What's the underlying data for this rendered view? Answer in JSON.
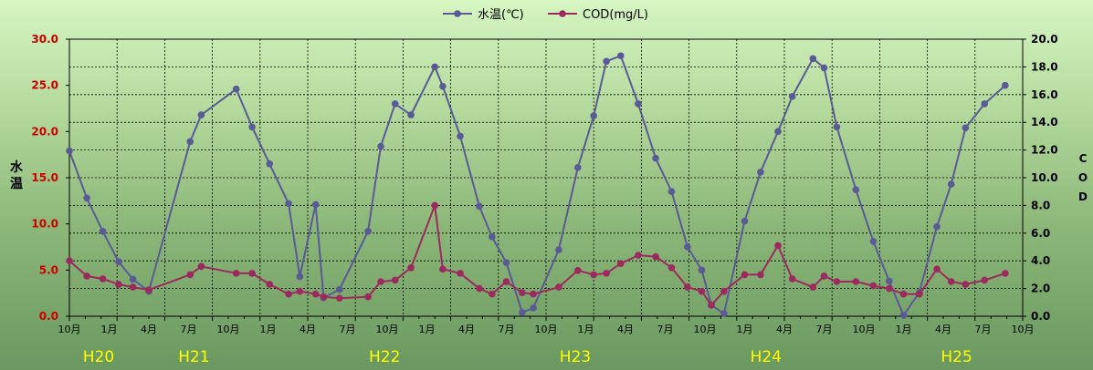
{
  "chart_data": {
    "type": "line",
    "title": "",
    "legend": {
      "placement": "top-center",
      "entries": [
        "水温(℃)",
        "COD(mg/L)"
      ]
    },
    "grid": true,
    "y_left": {
      "label": "水温",
      "lim": [
        0,
        30
      ],
      "ticks": [
        "0.0",
        "5.0",
        "10.0",
        "15.0",
        "20.0",
        "25.0",
        "30.0"
      ]
    },
    "y_right": {
      "label": "COD",
      "lim": [
        0,
        20
      ],
      "ticks": [
        "0.0",
        "2.0",
        "4.0",
        "6.0",
        "8.0",
        "10.0",
        "12.0",
        "14.0",
        "16.0",
        "18.0",
        "20.0"
      ]
    },
    "x_tick_labels": [
      "10月",
      "1月",
      "4月",
      "7月",
      "10月",
      "1月",
      "4月",
      "7月",
      "10月",
      "1月",
      "4月",
      "7月",
      "10月",
      "1月",
      "4月",
      "7月",
      "10月",
      "1月",
      "4月",
      "7月",
      "10月",
      "1月",
      "4月",
      "7月",
      "10月"
    ],
    "year_labels": [
      {
        "label": "H20",
        "month_index": 0
      },
      {
        "label": "H21",
        "month_index": 6
      },
      {
        "label": "H22",
        "month_index": 18
      },
      {
        "label": "H23",
        "month_index": 30
      },
      {
        "label": "H24",
        "month_index": 42
      },
      {
        "label": "H25",
        "month_index": 54
      }
    ],
    "colors": {
      "water_temp": "#5a5a96",
      "cod": "#9c2a5e",
      "left_axis_text": "#cc0000",
      "right_axis_text": "#000000",
      "year_text": "#ffff00"
    },
    "series": [
      {
        "name": "水温(℃)",
        "axis": "left",
        "points": [
          [
            0,
            17.9
          ],
          [
            1.1,
            12.8
          ],
          [
            2.1,
            9.2
          ],
          [
            3.1,
            5.9
          ],
          [
            4,
            4.0
          ],
          [
            5,
            2.7
          ],
          [
            7.6,
            18.9
          ],
          [
            8.3,
            21.8
          ],
          [
            10.5,
            24.6
          ],
          [
            11.5,
            20.5
          ],
          [
            12.6,
            16.5
          ],
          [
            13.8,
            12.2
          ],
          [
            14.5,
            4.3
          ],
          [
            15.5,
            12.1
          ],
          [
            16,
            2.0
          ],
          [
            17,
            2.9
          ],
          [
            18.8,
            9.2
          ],
          [
            19.6,
            18.4
          ],
          [
            20.5,
            23.0
          ],
          [
            21.5,
            21.8
          ],
          [
            23,
            27.0
          ],
          [
            23.5,
            24.9
          ],
          [
            24.6,
            19.5
          ],
          [
            25.8,
            11.9
          ],
          [
            26.6,
            8.6
          ],
          [
            27.5,
            5.8
          ],
          [
            28.5,
            0.4
          ],
          [
            29.2,
            0.9
          ],
          [
            30.8,
            7.2
          ],
          [
            32,
            16.1
          ],
          [
            33,
            21.7
          ],
          [
            33.8,
            27.6
          ],
          [
            34.7,
            28.2
          ],
          [
            35.8,
            23.0
          ],
          [
            36.9,
            17.1
          ],
          [
            37.9,
            13.5
          ],
          [
            38.9,
            7.5
          ],
          [
            39.8,
            5.0
          ],
          [
            40.4,
            1.2
          ],
          [
            41.2,
            0.3
          ],
          [
            42.5,
            10.3
          ],
          [
            43.5,
            15.6
          ],
          [
            44.6,
            20.0
          ],
          [
            45.5,
            23.8
          ],
          [
            46.8,
            27.9
          ],
          [
            47.5,
            26.9
          ],
          [
            48.3,
            20.5
          ],
          [
            49.5,
            13.7
          ],
          [
            50.6,
            8.1
          ],
          [
            51.6,
            3.8
          ],
          [
            52.5,
            0.1
          ],
          [
            53.5,
            2.6
          ],
          [
            54.6,
            9.7
          ],
          [
            55.5,
            14.3
          ],
          [
            56.4,
            20.4
          ],
          [
            57.6,
            23.0
          ],
          [
            58.9,
            25.0
          ]
        ]
      },
      {
        "name": "COD(mg/L)",
        "axis": "right",
        "points": [
          [
            0,
            4.0
          ],
          [
            1.1,
            2.9
          ],
          [
            2.1,
            2.7
          ],
          [
            3.1,
            2.3
          ],
          [
            4,
            2.1
          ],
          [
            5,
            1.9
          ],
          [
            7.6,
            3.0
          ],
          [
            8.3,
            3.6
          ],
          [
            10.5,
            3.1
          ],
          [
            11.5,
            3.1
          ],
          [
            12.6,
            2.3
          ],
          [
            13.8,
            1.6
          ],
          [
            14.5,
            1.8
          ],
          [
            15.5,
            1.6
          ],
          [
            16,
            1.4
          ],
          [
            17,
            1.3
          ],
          [
            18.8,
            1.4
          ],
          [
            19.6,
            2.5
          ],
          [
            20.5,
            2.6
          ],
          [
            21.5,
            3.5
          ],
          [
            23,
            8.0
          ],
          [
            23.5,
            3.4
          ],
          [
            24.6,
            3.1
          ],
          [
            25.8,
            2.0
          ],
          [
            26.6,
            1.6
          ],
          [
            27.5,
            2.5
          ],
          [
            28.5,
            1.7
          ],
          [
            29.2,
            1.6
          ],
          [
            30.8,
            2.1
          ],
          [
            32,
            3.3
          ],
          [
            33,
            3.0
          ],
          [
            33.8,
            3.1
          ],
          [
            34.7,
            3.8
          ],
          [
            35.8,
            4.4
          ],
          [
            36.9,
            4.3
          ],
          [
            37.9,
            3.5
          ],
          [
            38.9,
            2.1
          ],
          [
            39.8,
            1.8
          ],
          [
            40.4,
            0.8
          ],
          [
            41.2,
            1.8
          ],
          [
            42.5,
            3.0
          ],
          [
            43.5,
            3.0
          ],
          [
            44.6,
            5.1
          ],
          [
            45.5,
            2.7
          ],
          [
            46.8,
            2.1
          ],
          [
            47.5,
            2.9
          ],
          [
            48.3,
            2.5
          ],
          [
            49.5,
            2.5
          ],
          [
            50.6,
            2.2
          ],
          [
            51.6,
            2.0
          ],
          [
            52.5,
            1.6
          ],
          [
            53.5,
            1.6
          ],
          [
            54.6,
            3.4
          ],
          [
            55.5,
            2.5
          ],
          [
            56.4,
            2.3
          ],
          [
            57.6,
            2.6
          ],
          [
            58.9,
            3.1
          ]
        ]
      }
    ]
  }
}
